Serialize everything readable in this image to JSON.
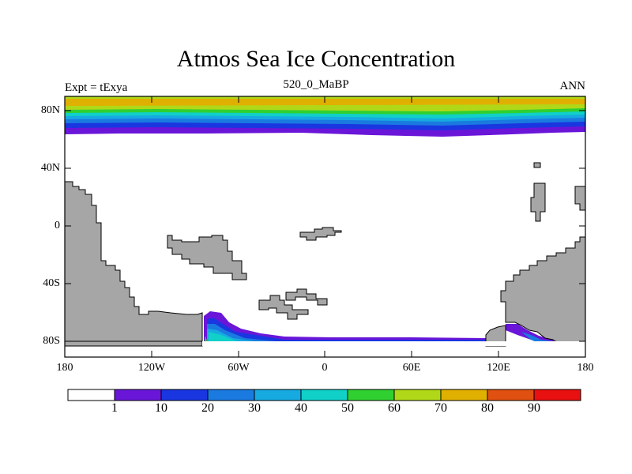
{
  "title": "Atmos Sea Ice Concentration",
  "subtitle_left": "Expt = tExya",
  "subtitle_center": "520_0_MaBP",
  "subtitle_right": "ANN",
  "colors": {
    "land": "#a6a6a6",
    "ocean": "#ffffff",
    "levels": [
      "#ffffff",
      "#6a16d8",
      "#1a36e0",
      "#1a7ae0",
      "#16aae0",
      "#10d0c8",
      "#30d030",
      "#b0d818",
      "#e0b000",
      "#e05010",
      "#e81010"
    ]
  },
  "map_data": {
    "type": "map",
    "projection": "cylindrical-equidistant",
    "lon_range": [
      -180,
      180
    ],
    "lat_range": [
      -90,
      90
    ],
    "lat_ticks": [
      "80N",
      "40N",
      "0",
      "40S",
      "80S"
    ],
    "lon_ticks": [
      "180",
      "120W",
      "60W",
      "0",
      "60E",
      "120E",
      "180"
    ],
    "colorbar": {
      "levels": [
        "1",
        "10",
        "20",
        "30",
        "40",
        "50",
        "60",
        "70",
        "80",
        "90"
      ],
      "units": "%"
    }
  }
}
